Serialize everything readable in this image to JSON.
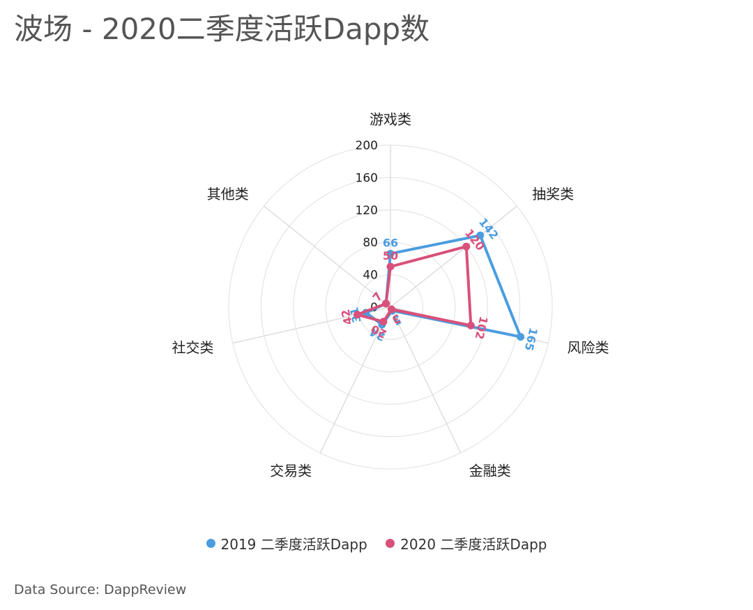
{
  "page": {
    "title": "波场 - 2020二季度活跃Dapp数",
    "source": "Data Source: DappReview"
  },
  "chart_data": {
    "type": "radar",
    "title": "波场 - 2020二季度活跃Dapp数",
    "categories": [
      "游戏类",
      "抽奖类",
      "风险类",
      "金融类",
      "交易类",
      "社交类",
      "其他类"
    ],
    "radial_ticks": [
      "0",
      "40",
      "80",
      "120",
      "160",
      "200"
    ],
    "rmax": 200,
    "grid": true,
    "legend_position": "bottom",
    "series": [
      {
        "name": "2019 二季度活跃Dapp",
        "color": "#4a9de0",
        "values": [
          66,
          142,
          165,
          5,
          24,
          31,
          7
        ]
      },
      {
        "name": "2020 二季度活跃Dapp",
        "color": "#d9507a",
        "values": [
          50,
          120,
          102,
          3,
          20,
          42,
          7
        ]
      }
    ]
  }
}
